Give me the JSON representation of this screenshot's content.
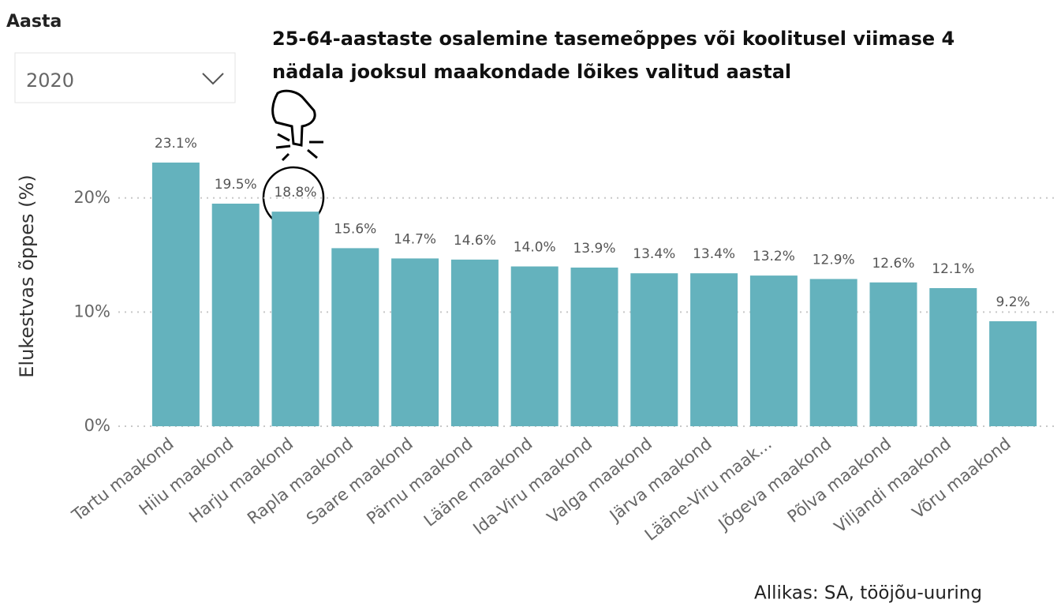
{
  "slicer": {
    "label": "Aasta",
    "value": "2020"
  },
  "source": "Allikas: SA, tööjõu-uuring",
  "chart_data": {
    "type": "bar",
    "title": "25-64-aastaste osalemine tasemeõppes või koolitusel viimase 4 nädala jooksul maakondade lõikes valitud aastal",
    "y_label": "Elukestvas õppes (%)",
    "categories": [
      "Tartu maakond",
      "Hiiu maakond",
      "Harju maakond",
      "Rapla maakond",
      "Saare maakond",
      "Pärnu maakond",
      "Lääne maakond",
      "Ida-Viru maakond",
      "Valga maakond",
      "Järva maakond",
      "Lääne-Viru maak...",
      "Jõgeva maakond",
      "Põlva maakond",
      "Viljandi maakond",
      "Võru maakond"
    ],
    "values": [
      23.1,
      19.5,
      18.8,
      15.6,
      14.7,
      14.6,
      14.0,
      13.9,
      13.4,
      13.4,
      13.2,
      12.9,
      12.6,
      12.1,
      9.2
    ],
    "value_labels": [
      "23.1%",
      "19.5%",
      "18.8%",
      "15.6%",
      "14.7%",
      "14.6%",
      "14.0%",
      "13.9%",
      "13.4%",
      "13.4%",
      "13.2%",
      "12.9%",
      "12.6%",
      "12.1%",
      "9.2%"
    ],
    "color": "#64b2bd",
    "ylim": [
      0,
      26
    ],
    "yticks": [
      {
        "value": 0,
        "label": "0%"
      },
      {
        "value": 10,
        "label": "10%"
      },
      {
        "value": 20,
        "label": "20%"
      }
    ],
    "grid": true
  }
}
